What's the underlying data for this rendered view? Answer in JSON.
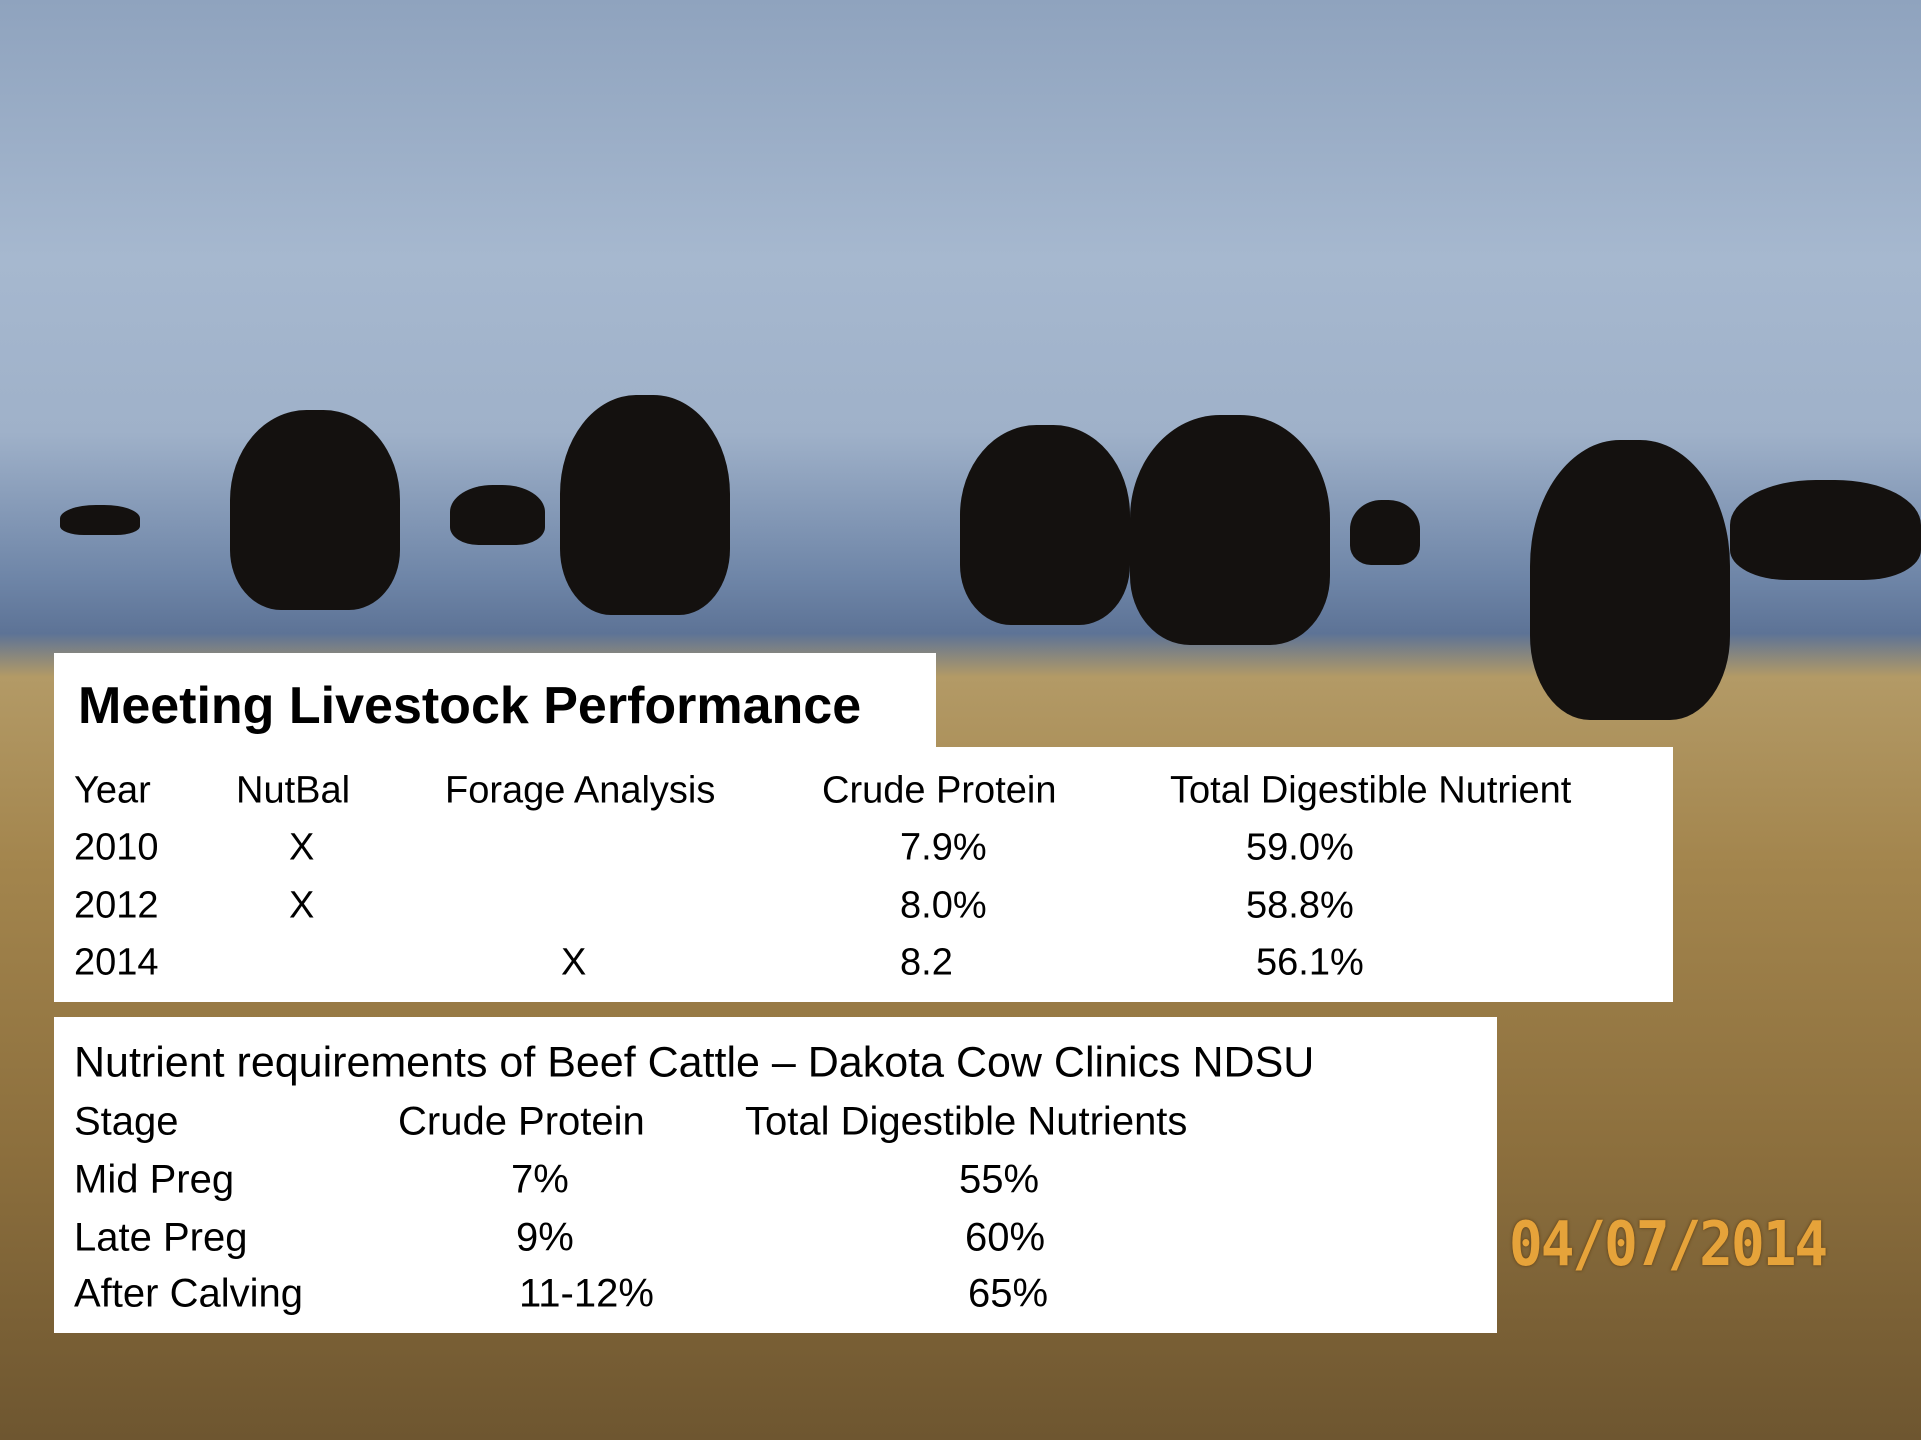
{
  "title": "Meeting Livestock Performance",
  "table1": {
    "header": [
      "Year",
      "NutBal",
      "Forage Analysis",
      "Crude Protein",
      "Total Digestible Nutrient"
    ],
    "rows": [
      {
        "year": "2010",
        "nutbal": "X",
        "crude_protein": "7.9%",
        "tdn": "59.0%"
      },
      {
        "year": "2012",
        "nutbal": "X",
        "crude_protein": "8.0%",
        "tdn": "58.8%"
      },
      {
        "year": "2014",
        "forage_analysis": "X",
        "crude_protein": "8.2",
        "tdn": "56.1%"
      }
    ]
  },
  "table2": {
    "title": "Nutrient requirements of Beef Cattle – Dakota Cow Clinics NDSU",
    "header": [
      "Stage",
      "Crude Protein",
      "Total Digestible Nutrients"
    ],
    "rows": [
      [
        "Mid Preg",
        "7%",
        "55%"
      ],
      [
        "Late Preg",
        "9%",
        "60%"
      ],
      [
        "After Calving",
        "11-12%",
        "65%"
      ]
    ]
  },
  "date_stamp": "04/07/2014"
}
